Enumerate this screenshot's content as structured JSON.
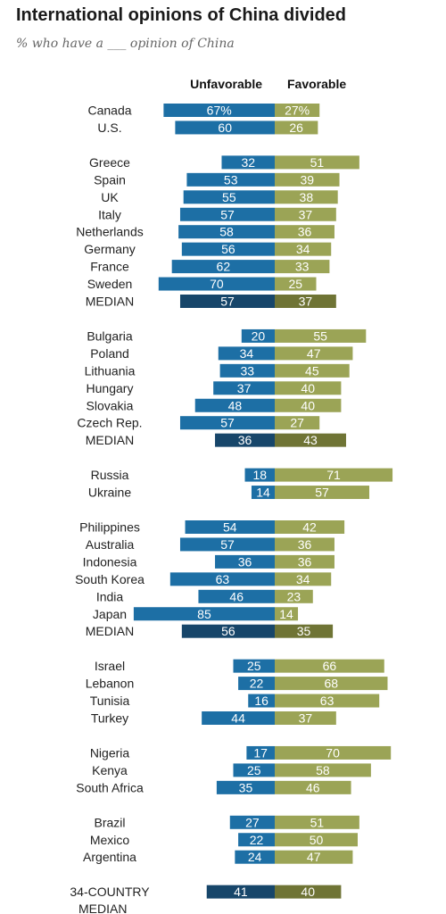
{
  "title": "International opinions of China divided",
  "subtitle": "% who have a ___ opinion of China",
  "colors": {
    "unfavorable": "#1d6fa5",
    "favorable": "#9ba456",
    "unfavorable_median": "#17466a",
    "favorable_median": "#6f7435"
  },
  "chart_data": {
    "type": "bar",
    "orientation": "diverging-horizontal",
    "title": "International opinions of China divided",
    "subtitle": "% who have a ___ opinion of China",
    "series": [
      {
        "name": "Unfavorable"
      },
      {
        "name": "Favorable"
      }
    ],
    "groups": [
      {
        "rows": [
          {
            "label": "Canada",
            "unfavorable": 67,
            "favorable": 27,
            "unfavorable_text": "67%",
            "favorable_text": "27%"
          },
          {
            "label": "U.S.",
            "unfavorable": 60,
            "favorable": 26
          }
        ]
      },
      {
        "rows": [
          {
            "label": "Greece",
            "unfavorable": 32,
            "favorable": 51
          },
          {
            "label": "Spain",
            "unfavorable": 53,
            "favorable": 39
          },
          {
            "label": "UK",
            "unfavorable": 55,
            "favorable": 38
          },
          {
            "label": "Italy",
            "unfavorable": 57,
            "favorable": 37
          },
          {
            "label": "Netherlands",
            "unfavorable": 58,
            "favorable": 36
          },
          {
            "label": "Germany",
            "unfavorable": 56,
            "favorable": 34
          },
          {
            "label": "France",
            "unfavorable": 62,
            "favorable": 33
          },
          {
            "label": "Sweden",
            "unfavorable": 70,
            "favorable": 25
          },
          {
            "label": "MEDIAN",
            "unfavorable": 57,
            "favorable": 37,
            "median": true
          }
        ]
      },
      {
        "rows": [
          {
            "label": "Bulgaria",
            "unfavorable": 20,
            "favorable": 55
          },
          {
            "label": "Poland",
            "unfavorable": 34,
            "favorable": 47
          },
          {
            "label": "Lithuania",
            "unfavorable": 33,
            "favorable": 45
          },
          {
            "label": "Hungary",
            "unfavorable": 37,
            "favorable": 40
          },
          {
            "label": "Slovakia",
            "unfavorable": 48,
            "favorable": 40
          },
          {
            "label": "Czech Rep.",
            "unfavorable": 57,
            "favorable": 27
          },
          {
            "label": "MEDIAN",
            "unfavorable": 36,
            "favorable": 43,
            "median": true
          }
        ]
      },
      {
        "rows": [
          {
            "label": "Russia",
            "unfavorable": 18,
            "favorable": 71
          },
          {
            "label": "Ukraine",
            "unfavorable": 14,
            "favorable": 57
          }
        ]
      },
      {
        "rows": [
          {
            "label": "Philippines",
            "unfavorable": 54,
            "favorable": 42
          },
          {
            "label": "Australia",
            "unfavorable": 57,
            "favorable": 36
          },
          {
            "label": "Indonesia",
            "unfavorable": 36,
            "favorable": 36
          },
          {
            "label": "South Korea",
            "unfavorable": 63,
            "favorable": 34
          },
          {
            "label": "India",
            "unfavorable": 46,
            "favorable": 23
          },
          {
            "label": "Japan",
            "unfavorable": 85,
            "favorable": 14
          },
          {
            "label": "MEDIAN",
            "unfavorable": 56,
            "favorable": 35,
            "median": true
          }
        ]
      },
      {
        "rows": [
          {
            "label": "Israel",
            "unfavorable": 25,
            "favorable": 66
          },
          {
            "label": "Lebanon",
            "unfavorable": 22,
            "favorable": 68
          },
          {
            "label": "Tunisia",
            "unfavorable": 16,
            "favorable": 63
          },
          {
            "label": "Turkey",
            "unfavorable": 44,
            "favorable": 37
          }
        ]
      },
      {
        "rows": [
          {
            "label": "Nigeria",
            "unfavorable": 17,
            "favorable": 70
          },
          {
            "label": "Kenya",
            "unfavorable": 25,
            "favorable": 58
          },
          {
            "label": "South Africa",
            "unfavorable": 35,
            "favorable": 46
          }
        ]
      },
      {
        "rows": [
          {
            "label": "Brazil",
            "unfavorable": 27,
            "favorable": 51
          },
          {
            "label": "Mexico",
            "unfavorable": 22,
            "favorable": 50
          },
          {
            "label": "Argentina",
            "unfavorable": 24,
            "favorable": 47
          }
        ]
      },
      {
        "rows": [
          {
            "label": "34-COUNTRY",
            "label_line2": "MEDIAN",
            "unfavorable": 41,
            "favorable": 40,
            "median": true
          }
        ]
      }
    ]
  }
}
